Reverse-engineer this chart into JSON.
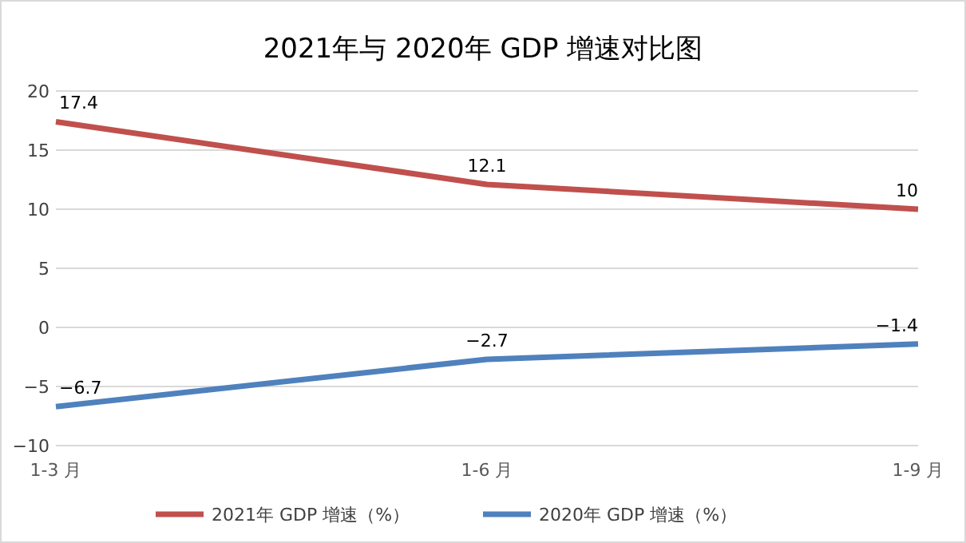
{
  "chart_data": {
    "type": "line",
    "title": "2021年与 2020年 GDP 增速对比图",
    "categories": [
      "1-3 月",
      "1-6 月",
      "1-9 月"
    ],
    "series": [
      {
        "name": "2021年 GDP 增速（%）",
        "color": "#c0504d",
        "values": [
          17.4,
          12.1,
          10
        ]
      },
      {
        "name": "2020年 GDP 增速（%）",
        "color": "#4f81bd",
        "values": [
          -6.7,
          -2.7,
          -1.4
        ]
      }
    ],
    "ylim": [
      -10,
      20
    ],
    "yticks": [
      -10,
      -5,
      0,
      5,
      10,
      15,
      20
    ],
    "grid": "y",
    "legend": "bottom",
    "data_labels": true,
    "marker": "none",
    "line_style": "solid"
  }
}
